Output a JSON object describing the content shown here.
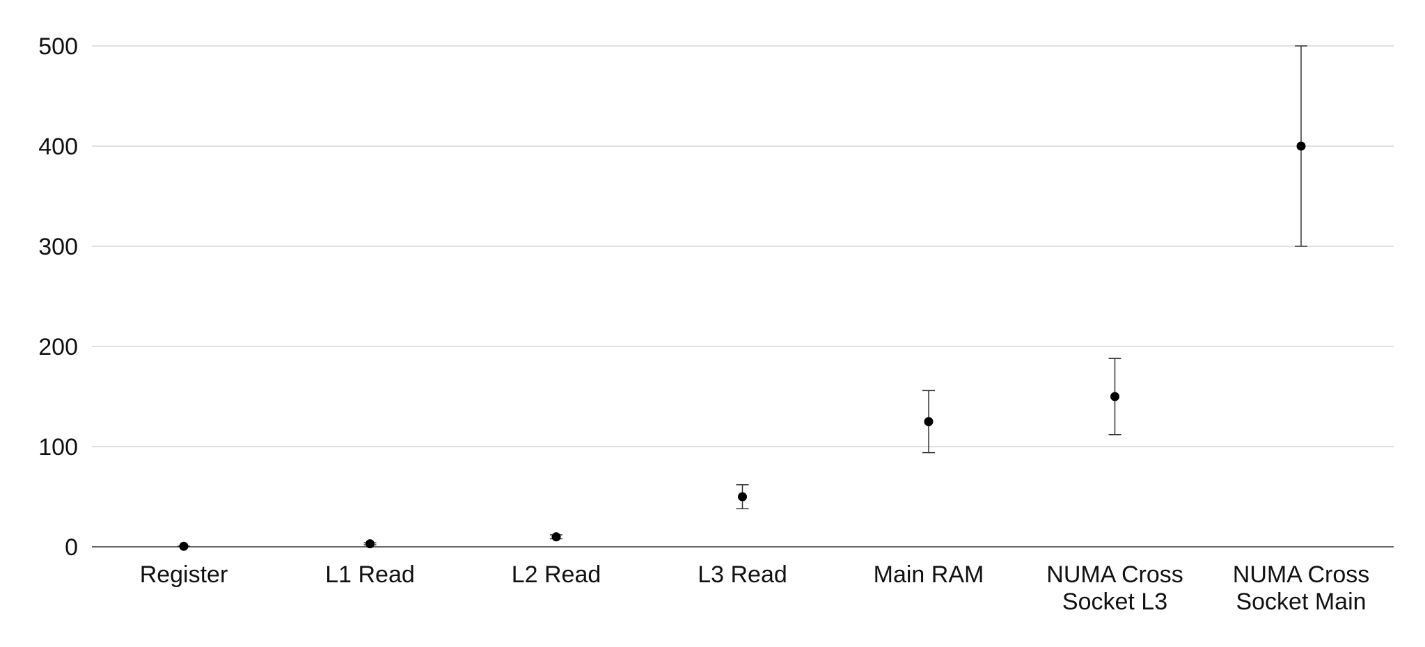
{
  "chart_data": {
    "type": "scatter",
    "title": "",
    "xlabel": "",
    "ylabel": "",
    "ylim": [
      0,
      500
    ],
    "yticks": [
      0,
      100,
      200,
      300,
      400,
      500
    ],
    "grid": true,
    "categories": [
      [
        "Register"
      ],
      [
        "L1 Read"
      ],
      [
        "L2 Read"
      ],
      [
        "L3 Read"
      ],
      [
        "Main RAM"
      ],
      [
        "NUMA Cross",
        "Socket L3"
      ],
      [
        "NUMA Cross",
        "Socket Main"
      ]
    ],
    "series": [
      {
        "name": "Latency",
        "values": [
          0.5,
          3,
          10,
          50,
          125,
          150,
          400
        ],
        "error_low": [
          0.3,
          2,
          8,
          38,
          94,
          112,
          300
        ],
        "error_high": [
          0.7,
          4,
          12,
          62,
          156,
          188,
          500
        ]
      }
    ]
  }
}
